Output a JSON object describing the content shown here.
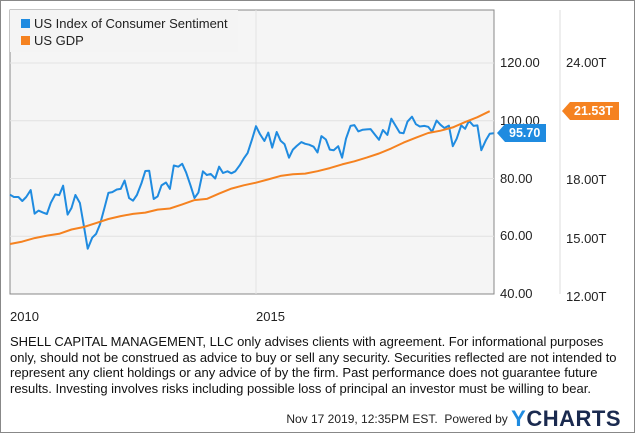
{
  "chart_data": {
    "type": "line",
    "title": "",
    "xlabel": "",
    "ylabel": "",
    "x_ticks": [
      "2010",
      "2015"
    ],
    "x_range": [
      2010.0,
      2019.83
    ],
    "legend_placement": "top-left",
    "grid": true,
    "left_axis": {
      "ticks": [
        "40.00",
        "60.00",
        "80.00",
        "100.00",
        "120.00"
      ],
      "tick_values": [
        40,
        60,
        80,
        100,
        120
      ],
      "range": [
        40,
        137
      ]
    },
    "right_axis": {
      "ticks": [
        "12.00T",
        "15.00T",
        "18.00T",
        "24.00T"
      ],
      "tick_values": [
        12,
        15,
        18,
        24
      ],
      "range": [
        12,
        27
      ]
    },
    "series": [
      {
        "name": "US Index of Consumer Sentiment",
        "axis": "left",
        "color": "#1f8be0",
        "last_value_label": "95.70",
        "x": [
          2010.0,
          2010.08,
          2010.17,
          2010.25,
          2010.33,
          2010.42,
          2010.5,
          2010.58,
          2010.67,
          2010.75,
          2010.83,
          2010.92,
          2011.0,
          2011.08,
          2011.17,
          2011.25,
          2011.33,
          2011.42,
          2011.5,
          2011.58,
          2011.67,
          2011.75,
          2011.83,
          2011.92,
          2012.0,
          2012.08,
          2012.17,
          2012.25,
          2012.33,
          2012.42,
          2012.5,
          2012.58,
          2012.67,
          2012.75,
          2012.83,
          2012.92,
          2013.0,
          2013.08,
          2013.17,
          2013.25,
          2013.33,
          2013.42,
          2013.5,
          2013.58,
          2013.67,
          2013.75,
          2013.83,
          2013.92,
          2014.0,
          2014.08,
          2014.17,
          2014.25,
          2014.33,
          2014.42,
          2014.5,
          2014.58,
          2014.67,
          2014.75,
          2014.83,
          2014.92,
          2015.0,
          2015.08,
          2015.17,
          2015.25,
          2015.33,
          2015.42,
          2015.5,
          2015.58,
          2015.67,
          2015.75,
          2015.83,
          2015.92,
          2016.0,
          2016.08,
          2016.17,
          2016.25,
          2016.33,
          2016.42,
          2016.5,
          2016.58,
          2016.67,
          2016.75,
          2016.83,
          2016.92,
          2017.0,
          2017.08,
          2017.17,
          2017.25,
          2017.33,
          2017.42,
          2017.5,
          2017.58,
          2017.67,
          2017.75,
          2017.83,
          2017.92,
          2018.0,
          2018.08,
          2018.17,
          2018.25,
          2018.33,
          2018.42,
          2018.5,
          2018.58,
          2018.67,
          2018.75,
          2018.83,
          2018.92,
          2019.0,
          2019.08,
          2019.17,
          2019.25,
          2019.33,
          2019.42,
          2019.5,
          2019.58,
          2019.67,
          2019.75,
          2019.83
        ],
        "values": [
          74.4,
          73.6,
          73.6,
          72.2,
          73.6,
          76.0,
          67.8,
          68.9,
          68.2,
          67.7,
          71.6,
          74.5,
          74.2,
          77.5,
          67.5,
          69.8,
          74.3,
          71.5,
          63.7,
          55.7,
          59.5,
          60.8,
          64.1,
          69.9,
          75.0,
          75.3,
          76.2,
          76.4,
          79.3,
          73.2,
          72.3,
          74.3,
          78.3,
          82.6,
          82.7,
          72.9,
          73.8,
          77.6,
          78.6,
          76.4,
          84.5,
          84.1,
          85.1,
          82.1,
          77.5,
          73.2,
          75.1,
          82.5,
          81.2,
          81.6,
          80.0,
          84.1,
          81.9,
          82.5,
          81.8,
          82.5,
          84.6,
          86.9,
          88.8,
          93.6,
          98.1,
          95.4,
          93.0,
          95.9,
          90.7,
          96.1,
          93.1,
          91.9,
          87.2,
          90.0,
          91.3,
          92.6,
          92.0,
          91.7,
          91.0,
          89.0,
          94.7,
          93.5,
          90.0,
          89.8,
          91.2,
          87.2,
          93.8,
          98.2,
          98.5,
          96.3,
          96.9,
          97.0,
          97.1,
          95.1,
          93.4,
          96.8,
          95.1,
          100.7,
          98.5,
          95.9,
          95.7,
          99.7,
          101.4,
          98.8,
          98.0,
          98.2,
          97.9,
          96.2,
          100.1,
          98.6,
          97.5,
          98.3,
          91.2,
          93.8,
          98.4,
          97.2,
          100.0,
          98.2,
          98.4,
          89.8,
          93.2,
          95.5,
          95.7
        ]
      },
      {
        "name": "US GDP",
        "axis": "right",
        "color": "#f58220",
        "last_value_label": "21.53T",
        "x": [
          2010.0,
          2010.25,
          2010.5,
          2010.75,
          2011.0,
          2011.25,
          2011.5,
          2011.75,
          2012.0,
          2012.25,
          2012.5,
          2012.75,
          2013.0,
          2013.25,
          2013.5,
          2013.75,
          2014.0,
          2014.25,
          2014.5,
          2014.75,
          2015.0,
          2015.25,
          2015.5,
          2015.75,
          2016.0,
          2016.25,
          2016.5,
          2016.75,
          2017.0,
          2017.25,
          2017.5,
          2017.75,
          2018.0,
          2018.25,
          2018.5,
          2018.75,
          2019.0,
          2019.25,
          2019.5,
          2019.75
        ],
        "values": [
          14.72,
          14.84,
          15.02,
          15.15,
          15.24,
          15.46,
          15.59,
          15.79,
          16.0,
          16.15,
          16.26,
          16.33,
          16.48,
          16.54,
          16.75,
          16.97,
          17.03,
          17.3,
          17.56,
          17.73,
          17.86,
          18.03,
          18.21,
          18.29,
          18.33,
          18.45,
          18.61,
          18.8,
          18.96,
          19.15,
          19.36,
          19.62,
          19.92,
          20.17,
          20.41,
          20.53,
          20.7,
          20.97,
          21.22,
          21.53
        ]
      }
    ]
  },
  "legend": {
    "items": [
      {
        "label": "US Index of Consumer Sentiment",
        "color": "#1f8be0"
      },
      {
        "label": "US GDP",
        "color": "#f58220"
      }
    ]
  },
  "disclaimer": "SHELL CAPITAL MANAGEMENT, LLC only advises clients with agreement. For informational purposes only, should not be construed as advice to buy or sell any security. Securities reflected are not intended to represent any client holdings or any advice of by the firm. Past performance does not guarantee future results. Investing involves risks including possible loss of principal an investor must be willing to bear.",
  "footer": {
    "timestamp": "Nov 17 2019, 12:35PM EST.",
    "powered_by": "Powered by",
    "brand_y": "Y",
    "brand_rest": "CHARTS"
  }
}
